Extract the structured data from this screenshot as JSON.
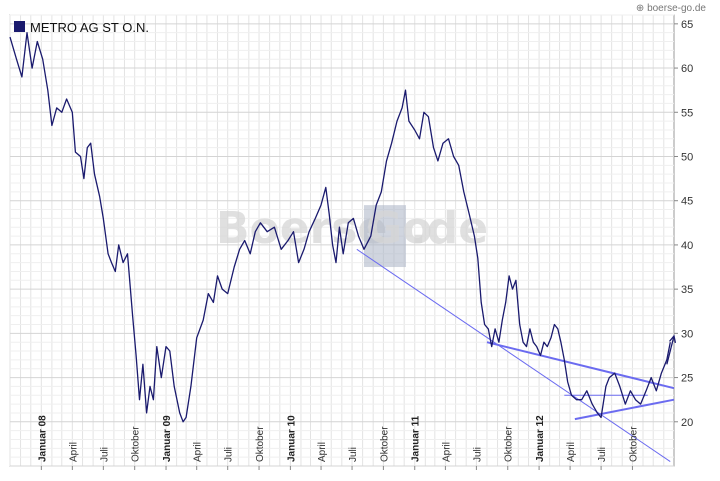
{
  "source_label": "⊕ boerse-go.de",
  "watermark_left": "Boerse",
  "watermark_mid": "Go",
  "watermark_right": ".de",
  "colors": {
    "price_line": "#1a1a6e",
    "trendline": "#6b6bf0",
    "grid": "#e3e3e3",
    "legend_swatch": "#1a1a6e"
  },
  "chart_data": {
    "type": "line",
    "title": "",
    "legend": [
      {
        "name": "METRO AG ST O.N.",
        "swatch": "#1a1a6e"
      }
    ],
    "xlim": [
      "2007-10-01",
      "2013-01-31"
    ],
    "ylim": [
      15,
      66
    ],
    "y_ticks": [
      20,
      25,
      30,
      35,
      40,
      45,
      50,
      55,
      60,
      65
    ],
    "y_axis_side": "right",
    "grid": true,
    "x_ticks": [
      {
        "date": "2008-01-01",
        "label": "Januar 08",
        "year": true
      },
      {
        "date": "2008-04-01",
        "label": "April"
      },
      {
        "date": "2008-07-01",
        "label": "Juli"
      },
      {
        "date": "2008-10-01",
        "label": "Oktober"
      },
      {
        "date": "2009-01-01",
        "label": "Januar 09",
        "year": true
      },
      {
        "date": "2009-04-01",
        "label": "April"
      },
      {
        "date": "2009-07-01",
        "label": "Juli"
      },
      {
        "date": "2009-10-01",
        "label": "Oktober"
      },
      {
        "date": "2010-01-01",
        "label": "Januar 10",
        "year": true
      },
      {
        "date": "2010-04-01",
        "label": "April"
      },
      {
        "date": "2010-07-01",
        "label": "Juli"
      },
      {
        "date": "2010-10-01",
        "label": "Oktober"
      },
      {
        "date": "2011-01-01",
        "label": "Januar 11",
        "year": true
      },
      {
        "date": "2011-04-01",
        "label": "April"
      },
      {
        "date": "2011-07-01",
        "label": "Juli"
      },
      {
        "date": "2011-10-01",
        "label": "Oktober"
      },
      {
        "date": "2012-01-01",
        "label": "Januar 12",
        "year": true
      },
      {
        "date": "2012-04-01",
        "label": "April"
      },
      {
        "date": "2012-07-01",
        "label": "Juli"
      },
      {
        "date": "2012-10-01",
        "label": "Oktober"
      }
    ],
    "series": [
      {
        "name": "METRO AG ST O.N.",
        "points": [
          [
            "2007-10-01",
            63.5
          ],
          [
            "2007-10-20",
            61
          ],
          [
            "2007-11-05",
            59
          ],
          [
            "2007-11-20",
            64
          ],
          [
            "2007-12-05",
            60
          ],
          [
            "2007-12-20",
            63
          ],
          [
            "2008-01-05",
            61
          ],
          [
            "2008-01-20",
            57.5
          ],
          [
            "2008-02-01",
            53.5
          ],
          [
            "2008-02-15",
            55.5
          ],
          [
            "2008-03-01",
            55
          ],
          [
            "2008-03-15",
            56.5
          ],
          [
            "2008-04-01",
            55
          ],
          [
            "2008-04-10",
            50.5
          ],
          [
            "2008-04-25",
            50
          ],
          [
            "2008-05-05",
            47.5
          ],
          [
            "2008-05-15",
            51
          ],
          [
            "2008-05-25",
            51.5
          ],
          [
            "2008-06-05",
            48
          ],
          [
            "2008-06-20",
            45.5
          ],
          [
            "2008-07-01",
            43
          ],
          [
            "2008-07-15",
            39
          ],
          [
            "2008-07-25",
            38
          ],
          [
            "2008-08-05",
            37
          ],
          [
            "2008-08-15",
            40
          ],
          [
            "2008-08-28",
            38
          ],
          [
            "2008-09-10",
            39
          ],
          [
            "2008-09-25",
            32
          ],
          [
            "2008-10-05",
            27.5
          ],
          [
            "2008-10-15",
            22.5
          ],
          [
            "2008-10-25",
            26.5
          ],
          [
            "2008-11-05",
            21
          ],
          [
            "2008-11-15",
            24
          ],
          [
            "2008-11-25",
            22.5
          ],
          [
            "2008-12-05",
            28.5
          ],
          [
            "2008-12-18",
            25
          ],
          [
            "2009-01-01",
            28.5
          ],
          [
            "2009-01-12",
            28
          ],
          [
            "2009-01-25",
            24
          ],
          [
            "2009-02-10",
            21
          ],
          [
            "2009-02-20",
            20
          ],
          [
            "2009-03-01",
            20.5
          ],
          [
            "2009-03-15",
            24
          ],
          [
            "2009-04-01",
            29.5
          ],
          [
            "2009-04-20",
            31.5
          ],
          [
            "2009-05-05",
            34.5
          ],
          [
            "2009-05-20",
            33.5
          ],
          [
            "2009-06-01",
            36.5
          ],
          [
            "2009-06-15",
            35
          ],
          [
            "2009-07-01",
            34.5
          ],
          [
            "2009-07-20",
            37.5
          ],
          [
            "2009-08-05",
            39.5
          ],
          [
            "2009-08-20",
            40.5
          ],
          [
            "2009-09-05",
            39
          ],
          [
            "2009-09-20",
            41.5
          ],
          [
            "2009-10-05",
            42.5
          ],
          [
            "2009-10-25",
            41.5
          ],
          [
            "2009-11-15",
            42
          ],
          [
            "2009-12-05",
            39.5
          ],
          [
            "2009-12-25",
            40.5
          ],
          [
            "2010-01-10",
            41.5
          ],
          [
            "2010-01-25",
            38
          ],
          [
            "2010-02-10",
            39.5
          ],
          [
            "2010-02-25",
            41.5
          ],
          [
            "2010-03-15",
            43
          ],
          [
            "2010-04-01",
            44.5
          ],
          [
            "2010-04-15",
            46.5
          ],
          [
            "2010-04-25",
            43.5
          ],
          [
            "2010-05-05",
            40
          ],
          [
            "2010-05-15",
            38
          ],
          [
            "2010-05-25",
            42
          ],
          [
            "2010-06-05",
            39
          ],
          [
            "2010-06-20",
            42.5
          ],
          [
            "2010-07-05",
            43
          ],
          [
            "2010-07-20",
            41
          ],
          [
            "2010-08-05",
            39.5
          ],
          [
            "2010-08-25",
            41
          ],
          [
            "2010-09-10",
            44.5
          ],
          [
            "2010-09-25",
            46
          ],
          [
            "2010-10-10",
            49.5
          ],
          [
            "2010-10-25",
            51.5
          ],
          [
            "2010-11-10",
            54
          ],
          [
            "2010-11-25",
            55.5
          ],
          [
            "2010-12-05",
            57.5
          ],
          [
            "2010-12-15",
            54
          ],
          [
            "2011-01-01",
            53
          ],
          [
            "2011-01-15",
            52
          ],
          [
            "2011-01-28",
            55
          ],
          [
            "2011-02-10",
            54.5
          ],
          [
            "2011-02-25",
            51
          ],
          [
            "2011-03-10",
            49.5
          ],
          [
            "2011-03-25",
            51.5
          ],
          [
            "2011-04-10",
            52
          ],
          [
            "2011-04-25",
            50
          ],
          [
            "2011-05-10",
            49
          ],
          [
            "2011-05-25",
            46
          ],
          [
            "2011-06-10",
            43.5
          ],
          [
            "2011-06-25",
            41
          ],
          [
            "2011-07-05",
            38.5
          ],
          [
            "2011-07-15",
            33.5
          ],
          [
            "2011-07-25",
            31
          ],
          [
            "2011-08-05",
            30.5
          ],
          [
            "2011-08-15",
            28.5
          ],
          [
            "2011-08-25",
            30.5
          ],
          [
            "2011-09-05",
            29
          ],
          [
            "2011-09-15",
            31.5
          ],
          [
            "2011-09-25",
            33.5
          ],
          [
            "2011-10-05",
            36.5
          ],
          [
            "2011-10-15",
            35
          ],
          [
            "2011-10-25",
            36
          ],
          [
            "2011-11-05",
            31
          ],
          [
            "2011-11-15",
            29
          ],
          [
            "2011-11-25",
            28.5
          ],
          [
            "2011-12-05",
            30.5
          ],
          [
            "2011-12-15",
            29
          ],
          [
            "2011-12-25",
            28.5
          ],
          [
            "2012-01-05",
            27.5
          ],
          [
            "2012-01-15",
            29
          ],
          [
            "2012-01-25",
            28.5
          ],
          [
            "2012-02-05",
            29.5
          ],
          [
            "2012-02-15",
            31
          ],
          [
            "2012-02-25",
            30.5
          ],
          [
            "2012-03-05",
            29
          ],
          [
            "2012-03-15",
            27
          ],
          [
            "2012-03-25",
            24.5
          ],
          [
            "2012-04-05",
            23
          ],
          [
            "2012-04-20",
            22.5
          ],
          [
            "2012-05-05",
            22.5
          ],
          [
            "2012-05-20",
            23.5
          ],
          [
            "2012-06-05",
            22
          ],
          [
            "2012-06-20",
            21
          ],
          [
            "2012-07-01",
            20.5
          ],
          [
            "2012-07-15",
            24
          ],
          [
            "2012-07-25",
            25
          ],
          [
            "2012-08-10",
            25.5
          ],
          [
            "2012-08-25",
            24
          ],
          [
            "2012-09-10",
            22
          ],
          [
            "2012-09-25",
            23.5
          ],
          [
            "2012-10-10",
            22.5
          ],
          [
            "2012-10-25",
            22
          ],
          [
            "2012-11-10",
            23.5
          ],
          [
            "2012-11-25",
            25
          ],
          [
            "2012-12-10",
            23.5
          ],
          [
            "2012-12-25",
            25.5
          ],
          [
            "2013-01-10",
            27
          ],
          [
            "2013-01-20",
            29
          ]
        ]
      }
    ],
    "annotations": {
      "trendlines": [
        {
          "from": [
            "2011-08-01",
            29
          ],
          "to": [
            "2013-01-31",
            23.8
          ],
          "weight": "bold"
        },
        {
          "from": [
            "2012-04-15",
            20.3
          ],
          "to": [
            "2013-01-31",
            22.5
          ],
          "weight": "bold"
        },
        {
          "from": [
            "2012-03-15",
            23
          ],
          "to": [
            "2012-11-15",
            23
          ],
          "weight": "thin"
        },
        {
          "from": [
            "2010-07-15",
            39.5
          ],
          "to": [
            "2013-01-20",
            15.5
          ],
          "weight": "thin"
        }
      ],
      "arrow": {
        "from": [
          "2013-01-10",
          26.5
        ],
        "to": [
          "2013-01-31",
          29.7
        ]
      }
    }
  }
}
